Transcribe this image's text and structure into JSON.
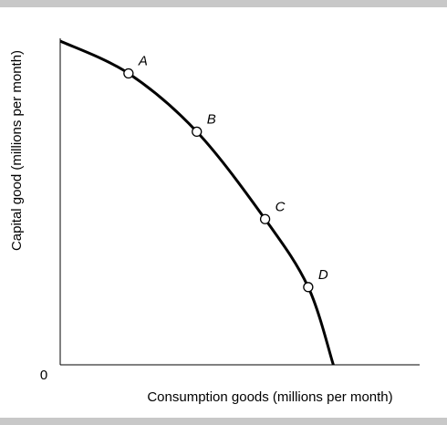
{
  "chart_data": {
    "type": "line",
    "title": "",
    "xlabel": "Consumption goods (millions per month)",
    "ylabel": "Capital good (millions per month)",
    "origin_label": "0",
    "xlim": [
      0,
      100
    ],
    "ylim": [
      0,
      100
    ],
    "x_ticks": [],
    "y_ticks": [],
    "grid": false,
    "legend": "none",
    "curve_color": "#000000",
    "series": [
      {
        "values": [
          {
            "x": 0,
            "y": 100
          },
          {
            "x": 19,
            "y": 90
          },
          {
            "x": 38,
            "y": 72
          },
          {
            "x": 57,
            "y": 45
          },
          {
            "x": 69,
            "y": 24
          },
          {
            "x": 76,
            "y": 0
          }
        ]
      }
    ],
    "points": [
      {
        "label": "A",
        "x": 19,
        "y": 90
      },
      {
        "label": "B",
        "x": 38,
        "y": 72
      },
      {
        "label": "C",
        "x": 57,
        "y": 45
      },
      {
        "label": "D",
        "x": 69,
        "y": 24
      }
    ]
  }
}
